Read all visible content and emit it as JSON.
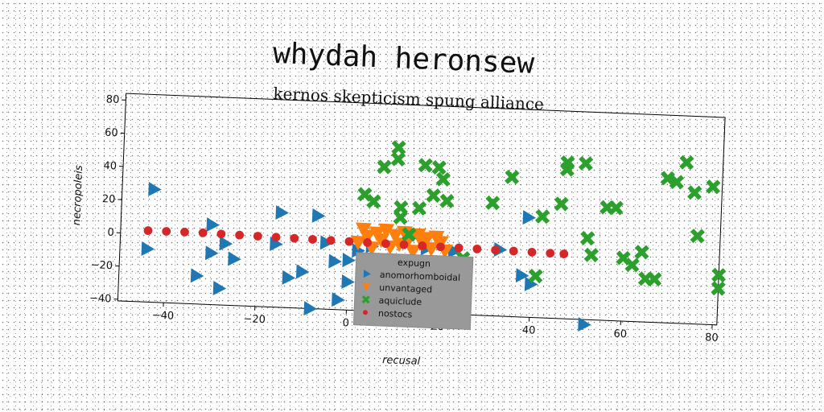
{
  "chart_data": {
    "type": "scatter",
    "title": "whydah heronsew",
    "subtitle": "kernos skepticism spung alliance",
    "xlabel": "recusal",
    "ylabel": "necropoleis",
    "xlim": [
      -50,
      81
    ],
    "ylim": [
      -41,
      84
    ],
    "xticks": [
      "−40",
      "−20",
      "0",
      "20",
      "40",
      "60",
      "80"
    ],
    "yticks": [
      "−40",
      "−20",
      "0",
      "20",
      "40",
      "60",
      "80"
    ],
    "grid": false,
    "legend": {
      "title": "expugn",
      "placement": "lower-center",
      "background": "#999999"
    },
    "series": [
      {
        "name": "anomorhomboidal",
        "marker": "triangle-right",
        "color": "#1f77b4",
        "points": [
          [
            -43,
            27
          ],
          [
            -44,
            -9
          ],
          [
            -30,
            7
          ],
          [
            -30,
            -10
          ],
          [
            -33,
            -24
          ],
          [
            -28,
            -31
          ],
          [
            -27,
            -4
          ],
          [
            -25,
            -13
          ],
          [
            -16,
            -3
          ],
          [
            -15,
            16
          ],
          [
            -13,
            -23
          ],
          [
            -10,
            -19
          ],
          [
            -8,
            -41
          ],
          [
            -7,
            15
          ],
          [
            -5,
            -1
          ],
          [
            -3,
            -12
          ],
          [
            -2,
            -35
          ],
          [
            0,
            -24
          ],
          [
            0,
            -11
          ],
          [
            2,
            -5
          ],
          [
            5,
            -2
          ],
          [
            14,
            -10
          ],
          [
            17,
            -2
          ],
          [
            23,
            -3
          ],
          [
            33,
            -1
          ],
          [
            38,
            -16
          ],
          [
            39,
            19
          ],
          [
            40,
            -21
          ],
          [
            52,
            -44
          ]
        ]
      },
      {
        "name": "unvantaged",
        "marker": "triangle-down",
        "color": "#ff7f0e",
        "points": [
          [
            2,
            0
          ],
          [
            3,
            8
          ],
          [
            4,
            4
          ],
          [
            5,
            -3
          ],
          [
            6,
            6
          ],
          [
            7,
            2
          ],
          [
            8,
            8
          ],
          [
            9,
            -2
          ],
          [
            10,
            5
          ],
          [
            11,
            0
          ],
          [
            12,
            7
          ],
          [
            13,
            3
          ],
          [
            14,
            -4
          ],
          [
            15,
            6
          ],
          [
            16,
            1
          ],
          [
            17,
            4
          ],
          [
            18,
            -2
          ],
          [
            19,
            5
          ],
          [
            20,
            2
          ],
          [
            21,
            -3
          ]
        ]
      },
      {
        "name": "aquiclude",
        "marker": "x",
        "color": "#2ca02c",
        "points": [
          [
            3,
            29
          ],
          [
            5,
            25
          ],
          [
            7,
            46
          ],
          [
            10,
            58
          ],
          [
            10,
            51
          ],
          [
            11,
            22
          ],
          [
            11,
            16
          ],
          [
            13,
            6
          ],
          [
            15,
            22
          ],
          [
            16,
            48
          ],
          [
            18,
            30
          ],
          [
            19,
            47
          ],
          [
            20,
            40
          ],
          [
            21,
            27
          ],
          [
            25,
            -7
          ],
          [
            31,
            27
          ],
          [
            35,
            43
          ],
          [
            41,
            -16
          ],
          [
            42,
            20
          ],
          [
            46,
            28
          ],
          [
            47,
            49
          ],
          [
            47,
            53
          ],
          [
            51,
            53
          ],
          [
            52,
            8
          ],
          [
            53,
            -2
          ],
          [
            56,
            27
          ],
          [
            58,
            27
          ],
          [
            60,
            -3
          ],
          [
            62,
            -7
          ],
          [
            64,
            1
          ],
          [
            65,
            -15
          ],
          [
            67,
            -15
          ],
          [
            69,
            46
          ],
          [
            71,
            44
          ],
          [
            73,
            56
          ],
          [
            75,
            38
          ],
          [
            76,
            12
          ],
          [
            79,
            42
          ],
          [
            81,
            -11
          ],
          [
            81,
            -19
          ]
        ]
      },
      {
        "name": "nostocs",
        "marker": "circle",
        "color": "#d62728",
        "points": [
          [
            -44,
            2
          ],
          [
            -40,
            2
          ],
          [
            -36,
            2
          ],
          [
            -32,
            2
          ],
          [
            -28,
            1.7
          ],
          [
            -24,
            1.5
          ],
          [
            -20,
            1.3
          ],
          [
            -16,
            1.1
          ],
          [
            -12,
            0.9
          ],
          [
            -8,
            0.7
          ],
          [
            -4,
            0.5
          ],
          [
            0,
            0.3
          ],
          [
            4,
            0.1
          ],
          [
            8,
            -0.1
          ],
          [
            12,
            -0.3
          ],
          [
            16,
            -0.5
          ],
          [
            20,
            -0.7
          ],
          [
            24,
            -0.9
          ],
          [
            28,
            -1.1
          ],
          [
            32,
            -1.3
          ],
          [
            36,
            -1.5
          ],
          [
            40,
            -1.7
          ],
          [
            44,
            -1.9
          ],
          [
            47,
            -2
          ]
        ]
      }
    ]
  }
}
